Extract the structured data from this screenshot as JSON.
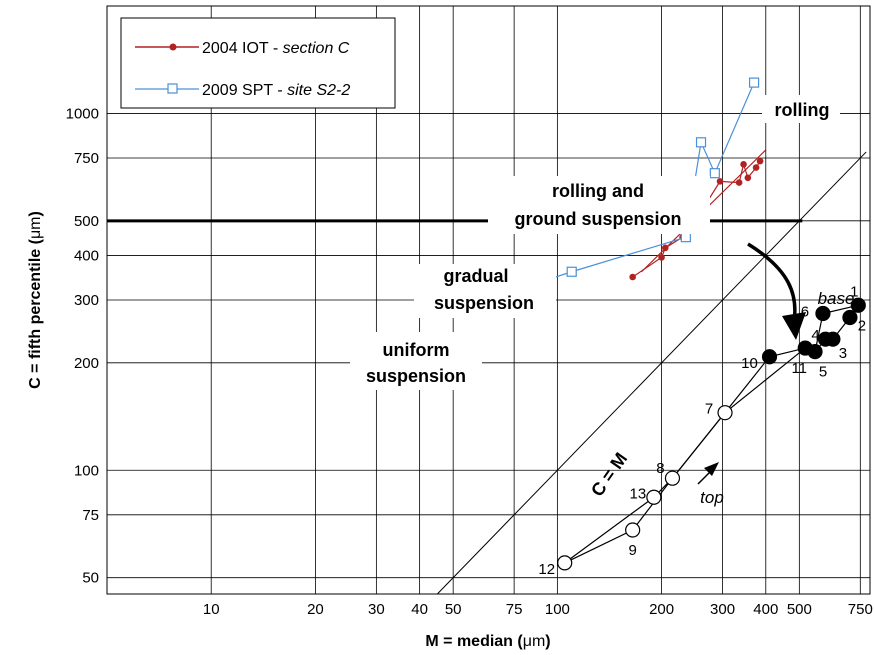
{
  "chart_data": {
    "type": "scatter",
    "x_axis": {
      "label_main": "M = median (",
      "label_unit": "μm",
      "label_close": ")",
      "scale": "log",
      "xlim": [
        5,
        800
      ],
      "ticks": [
        10,
        20,
        30,
        40,
        50,
        75,
        100,
        200,
        300,
        400,
        500,
        750
      ],
      "tick_labels": [
        "10",
        "20",
        "30",
        "40",
        "50",
        "75",
        "100",
        "200",
        "300",
        "400",
        "500",
        "750"
      ]
    },
    "y_axis": {
      "label_main": "C = fifth percentile (",
      "label_unit": "μm",
      "label_close": ")",
      "scale": "log",
      "ylim": [
        45,
        2000
      ],
      "ticks": [
        50,
        75,
        100,
        200,
        300,
        400,
        500,
        750,
        1000
      ],
      "tick_labels": [
        "50",
        "75",
        "100",
        "200",
        "300",
        "400",
        "500",
        "750",
        "1000"
      ]
    },
    "grid": true,
    "legend": {
      "position": "top-left",
      "entries": [
        {
          "main": "2004 IOT - ",
          "italic": "section C",
          "color": "#b22222",
          "marker": "filled-circle"
        },
        {
          "main": "2009 SPT - ",
          "italic": "site S2-2",
          "color": "#4a90d9",
          "marker": "open-square"
        }
      ]
    },
    "series": [
      {
        "name": "2004 IOT - section C",
        "color": "#b22222",
        "points": [
          [
            165,
            348
          ],
          [
            200,
            395
          ],
          [
            205,
            420
          ],
          [
            230,
            450
          ],
          [
            255,
            510
          ],
          [
            260,
            530
          ],
          [
            295,
            645
          ],
          [
            335,
            640
          ],
          [
            345,
            720
          ],
          [
            355,
            660
          ],
          [
            375,
            705
          ],
          [
            385,
            735
          ]
        ],
        "fit_line": [
          [
            175,
            360
          ],
          [
            400,
            790
          ]
        ]
      },
      {
        "name": "2009 SPT - site S2-2",
        "color": "#4a90d9",
        "points": [
          [
            110,
            360
          ],
          [
            235,
            450
          ],
          [
            260,
            830
          ],
          [
            285,
            680
          ],
          [
            370,
            1220
          ]
        ],
        "arrow_to": [
          92,
          340
        ]
      }
    ],
    "reference_lines": [
      {
        "label": "C = M",
        "points": [
          [
            45,
            45
          ],
          [
            2000,
            2000
          ]
        ]
      },
      {
        "label": "",
        "points": [
          [
            5,
            500
          ],
          [
            510,
            500
          ]
        ],
        "bold": true
      }
    ],
    "sample_points": [
      {
        "id": "1",
        "x": 740,
        "y": 290,
        "filled": true
      },
      {
        "id": "2",
        "x": 700,
        "y": 268,
        "filled": true
      },
      {
        "id": "3",
        "x": 625,
        "y": 233,
        "filled": true
      },
      {
        "id": "4",
        "x": 595,
        "y": 233,
        "filled": true
      },
      {
        "id": "5",
        "x": 555,
        "y": 215,
        "filled": true
      },
      {
        "id": "6",
        "x": 585,
        "y": 275,
        "filled": true
      },
      {
        "id": "7",
        "x": 305,
        "y": 145,
        "open": true
      },
      {
        "id": "8",
        "x": 215,
        "y": 95,
        "open": true
      },
      {
        "id": "9",
        "x": 165,
        "y": 68,
        "open": true
      },
      {
        "id": "10",
        "x": 410,
        "y": 208,
        "filled": true
      },
      {
        "id": "11",
        "x": 520,
        "y": 220,
        "filled": true
      },
      {
        "id": "12",
        "x": 105,
        "y": 55,
        "open": true
      },
      {
        "id": "13",
        "x": 190,
        "y": 84,
        "open": true
      }
    ],
    "sample_path": [
      "12",
      "13",
      "8",
      "7",
      "10",
      "11",
      "5",
      "4",
      "3",
      "2",
      "1",
      "6",
      "5"
    ],
    "sample_path2": [
      "12",
      "9",
      "8",
      "7",
      "11"
    ],
    "annotations": {
      "rolling": "rolling",
      "rolling_ground_1": "rolling and",
      "rolling_ground_2": "ground suspension",
      "gradual_1": "gradual",
      "gradual_2": "suspension",
      "uniform_1": "uniform",
      "uniform_2": "suspension",
      "cm": "C = M",
      "base": "base",
      "top": "top"
    }
  }
}
